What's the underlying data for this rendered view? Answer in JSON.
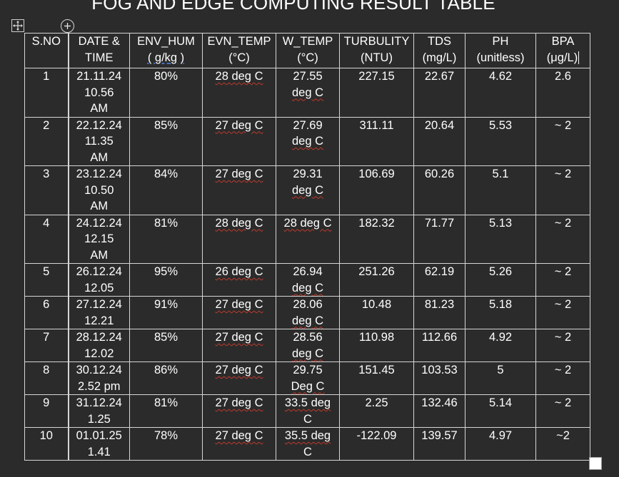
{
  "title": "FOG AND EDGE COMPUTING RESULT TABLE",
  "headers": [
    {
      "line1": "S.NO",
      "line2": ""
    },
    {
      "line1": "DATE &",
      "line2": "TIME"
    },
    {
      "line1": "ENV_HUM",
      "line2": "( g/kg )"
    },
    {
      "line1": "EVN_TEMP",
      "line2": "(°C)"
    },
    {
      "line1": "W_TEMP",
      "line2": "(°C)"
    },
    {
      "line1": "TURBULITY",
      "line2": "(NTU)"
    },
    {
      "line1": "TDS",
      "line2": "(mg/L)"
    },
    {
      "line1": "PH",
      "line2": "(unitless)"
    },
    {
      "line1": "BPA",
      "line2": "(μg/L)"
    }
  ],
  "rows": [
    {
      "sno": "1",
      "dt1": "21.11.24",
      "dt2": "10.56",
      "dt3": "AM",
      "hum": "80%",
      "evn": "28 deg C",
      "w1": "27.55",
      "w2": "deg C",
      "turb": "227.15",
      "tds": "22.67",
      "ph": "4.62",
      "bpa": "2.6"
    },
    {
      "sno": "2",
      "dt1": "22.12.24",
      "dt2": "11.35",
      "dt3": "AM",
      "hum": "85%",
      "evn": "27 deg C",
      "w1": "27.69",
      "w2": "deg C",
      "turb": "311.11",
      "tds": "20.64",
      "ph": "5.53",
      "bpa": "~ 2"
    },
    {
      "sno": "3",
      "dt1": "23.12.24",
      "dt2": "10.50",
      "dt3": "AM",
      "hum": "84%",
      "evn": "27 deg C",
      "w1": "29.31",
      "w2": "deg C",
      "turb": "106.69",
      "tds": "60.26",
      "ph": "5.1",
      "bpa": "~ 2"
    },
    {
      "sno": "4",
      "dt1": "24.12.24",
      "dt2": "12.15",
      "dt3": "AM",
      "hum": "81%",
      "evn": "28 deg C",
      "w1": "28 deg C",
      "w2": "",
      "turb": "182.32",
      "tds": "71.77",
      "ph": "5.13",
      "bpa": "~ 2"
    },
    {
      "sno": "5",
      "dt1": "26.12.24",
      "dt2": "12.05",
      "dt3": "",
      "hum": "95%",
      "evn": "26 deg C",
      "w1": "26.94",
      "w2": "deg C",
      "turb": "251.26",
      "tds": "62.19",
      "ph": "5.26",
      "bpa": "~ 2"
    },
    {
      "sno": "6",
      "dt1": "27.12.24",
      "dt2": "12.21",
      "dt3": "",
      "hum": "91%",
      "evn": "27 deg C",
      "w1": "28.06",
      "w2": "deg C",
      "turb": "10.48",
      "tds": "81.23",
      "ph": "5.18",
      "bpa": "~ 2"
    },
    {
      "sno": "7",
      "dt1": "28.12.24",
      "dt2": "12.02",
      "dt3": "",
      "hum": "85%",
      "evn": "27 deg C",
      "w1": "28.56",
      "w2": "deg C",
      "turb": "110.98",
      "tds": "112.66",
      "ph": "4.92",
      "bpa": "~ 2"
    },
    {
      "sno": "8",
      "dt1": "30.12.24",
      "dt2": "2.52 pm",
      "dt3": "",
      "hum": "86%",
      "evn": "27 deg C",
      "w1": "29.75",
      "w2": "Deg C",
      "turb": "151.45",
      "tds": "103.53",
      "ph": "5",
      "bpa": "~ 2"
    },
    {
      "sno": "9",
      "dt1": "31.12.24",
      "dt2": "1.25",
      "dt3": "",
      "hum": "81%",
      "evn": "27 deg C",
      "w1": "33.5 deg",
      "w2": "C",
      "turb": "2.25",
      "tds": "132.46",
      "ph": "5.14",
      "bpa": "~ 2"
    },
    {
      "sno": "10",
      "dt1": "01.01.25",
      "dt2": "1.41",
      "dt3": "",
      "hum": "78%",
      "evn": "27 deg C",
      "w1": "35.5 deg",
      "w2": "C",
      "turb": "-122.09",
      "tds": "139.57",
      "ph": "4.97",
      "bpa": "~2"
    }
  ],
  "icons": {
    "move": "move-arrows-icon",
    "add": "plus-circle-icon",
    "resize": "resize-square-icon"
  },
  "colors": {
    "background": "#2b2b2b",
    "text": "#ffffff",
    "border": "#d6d6d6",
    "spellcheck": "#c0392b",
    "grammar": "#4a7bd6"
  }
}
